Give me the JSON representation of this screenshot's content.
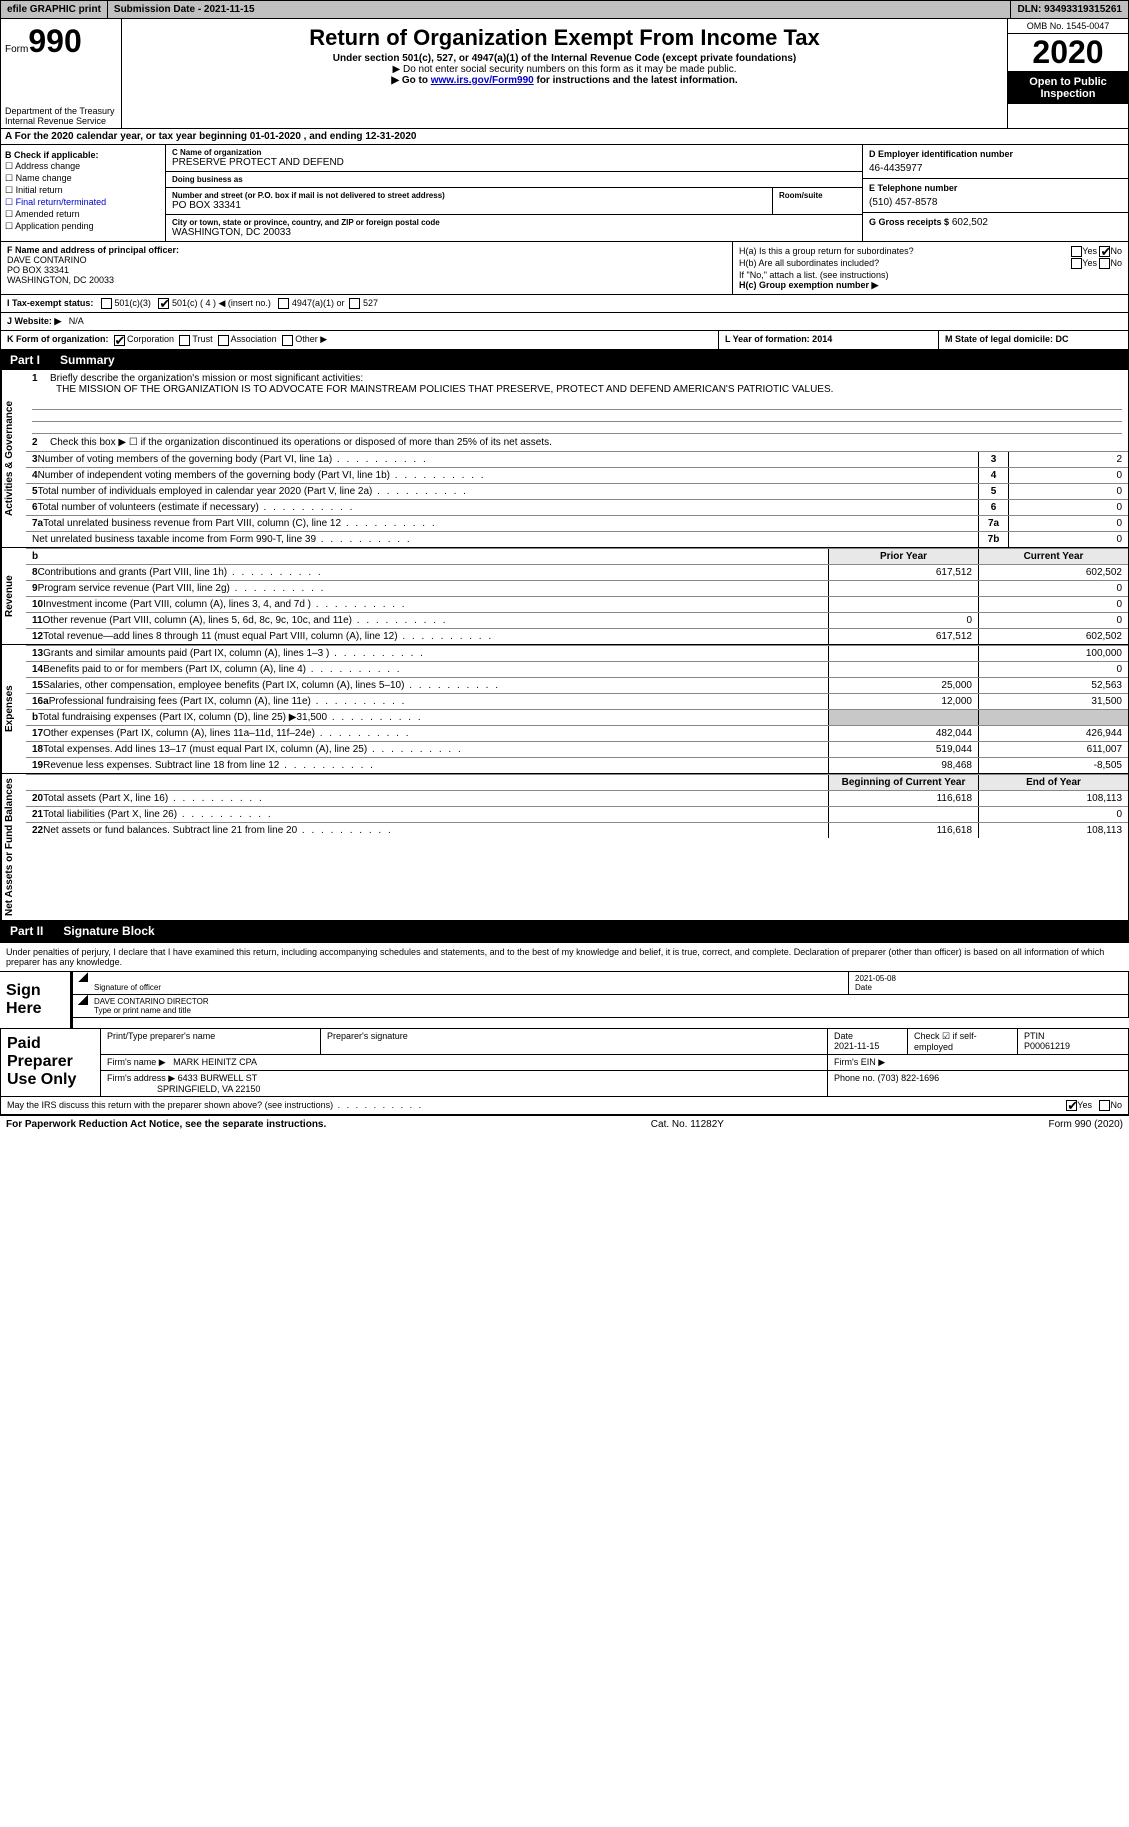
{
  "colors": {
    "bg": "#ffffff",
    "text": "#000000",
    "grey": "#c0c0c0",
    "shade": "#c8c8c8",
    "hdr": "#000000",
    "link": "#0000cc"
  },
  "topbar": {
    "efile": "efile GRAPHIC print",
    "sub_label": "Submission Date - 2021-11-15",
    "dln": "DLN: 93493319315261"
  },
  "header": {
    "form_word": "Form",
    "form_num": "990",
    "title": "Return of Organization Exempt From Income Tax",
    "sub1": "Under section 501(c), 527, or 4947(a)(1) of the Internal Revenue Code (except private foundations)",
    "sub2": "▶ Do not enter social security numbers on this form as it may be made public.",
    "sub3_pre": "▶ Go to ",
    "sub3_link": "www.irs.gov/Form990",
    "sub3_post": " for instructions and the latest information.",
    "dept1": "Department of the Treasury",
    "dept2": "Internal Revenue Service",
    "omb": "OMB No. 1545-0047",
    "year": "2020",
    "open1": "Open to Public",
    "open2": "Inspection"
  },
  "line_a": "A For the 2020 calendar year, or tax year beginning 01-01-2020    , and ending 12-31-2020",
  "box_b": {
    "title": "B Check if applicable:",
    "items": [
      "Address change",
      "Name change",
      "Initial return",
      "Final return/terminated",
      "Amended return",
      "Application pending"
    ]
  },
  "box_c": {
    "name_lbl": "C Name of organization",
    "name": "PRESERVE PROTECT AND DEFEND",
    "dba_lbl": "Doing business as",
    "dba": "",
    "addr_lbl": "Number and street (or P.O. box if mail is not delivered to street address)",
    "room_lbl": "Room/suite",
    "addr": "PO BOX 33341",
    "city_lbl": "City or town, state or province, country, and ZIP or foreign postal code",
    "city": "WASHINGTON, DC  20033"
  },
  "box_d": {
    "lbl": "D Employer identification number",
    "val": "46-4435977"
  },
  "box_e": {
    "lbl": "E Telephone number",
    "val": "(510) 457-8578"
  },
  "box_g": {
    "lbl": "G Gross receipts $",
    "val": "602,502"
  },
  "box_f": {
    "lbl": "F  Name and address of principal officer:",
    "l1": "DAVE CONTARINO",
    "l2": "PO BOX 33341",
    "l3": "WASHINGTON, DC  20033"
  },
  "box_h": {
    "a": "H(a)  Is this a group return for subordinates?",
    "b": "H(b)  Are all subordinates included?",
    "note": "If \"No,\" attach a list. (see instructions)",
    "c": "H(c)  Group exemption number ▶",
    "yes": "Yes",
    "no": "No"
  },
  "row_i": {
    "lbl": "I   Tax-exempt status:",
    "o1": "501(c)(3)",
    "o2": "501(c) ( 4 ) ◀ (insert no.)",
    "o3": "4947(a)(1) or",
    "o4": "527"
  },
  "row_j": {
    "lbl": "J   Website: ▶",
    "val": "N/A"
  },
  "row_k": {
    "lbl": "K Form of organization:",
    "o1": "Corporation",
    "o2": "Trust",
    "o3": "Association",
    "o4": "Other ▶"
  },
  "row_l": "L Year of formation: 2014",
  "row_m": "M State of legal domicile: DC",
  "part1": {
    "num": "Part I",
    "title": "Summary"
  },
  "side": {
    "gov": "Activities & Governance",
    "rev": "Revenue",
    "exp": "Expenses",
    "net": "Net Assets or Fund Balances"
  },
  "q1": {
    "num": "1",
    "text": "Briefly describe the organization's mission or most significant activities:",
    "mission": "THE MISSION OF THE ORGANIZATION IS TO ADVOCATE FOR MAINSTREAM POLICIES THAT PRESERVE, PROTECT AND DEFEND AMERICAN'S PATRIOTIC VALUES."
  },
  "q2": {
    "num": "2",
    "text": "Check this box ▶ ☐  if the organization discontinued its operations or disposed of more than 25% of its net assets."
  },
  "gov_rows": [
    {
      "n": "3",
      "d": "Number of voting members of the governing body (Part VI, line 1a)",
      "b": "3",
      "v": "2"
    },
    {
      "n": "4",
      "d": "Number of independent voting members of the governing body (Part VI, line 1b)",
      "b": "4",
      "v": "0"
    },
    {
      "n": "5",
      "d": "Total number of individuals employed in calendar year 2020 (Part V, line 2a)",
      "b": "5",
      "v": "0"
    },
    {
      "n": "6",
      "d": "Total number of volunteers (estimate if necessary)",
      "b": "6",
      "v": "0"
    },
    {
      "n": "7a",
      "d": "Total unrelated business revenue from Part VIII, column (C), line 12",
      "b": "7a",
      "v": "0"
    },
    {
      "n": "",
      "d": "Net unrelated business taxable income from Form 990-T, line 39",
      "b": "7b",
      "v": "0"
    }
  ],
  "fin_hdr": {
    "b": "b",
    "py": "Prior Year",
    "cy": "Current Year"
  },
  "rev_rows": [
    {
      "n": "8",
      "d": "Contributions and grants (Part VIII, line 1h)",
      "py": "617,512",
      "cy": "602,502"
    },
    {
      "n": "9",
      "d": "Program service revenue (Part VIII, line 2g)",
      "py": "",
      "cy": "0"
    },
    {
      "n": "10",
      "d": "Investment income (Part VIII, column (A), lines 3, 4, and 7d )",
      "py": "",
      "cy": "0"
    },
    {
      "n": "11",
      "d": "Other revenue (Part VIII, column (A), lines 5, 6d, 8c, 9c, 10c, and 11e)",
      "py": "0",
      "cy": "0"
    },
    {
      "n": "12",
      "d": "Total revenue—add lines 8 through 11 (must equal Part VIII, column (A), line 12)",
      "py": "617,512",
      "cy": "602,502"
    }
  ],
  "exp_rows": [
    {
      "n": "13",
      "d": "Grants and similar amounts paid (Part IX, column (A), lines 1–3 )",
      "py": "",
      "cy": "100,000"
    },
    {
      "n": "14",
      "d": "Benefits paid to or for members (Part IX, column (A), line 4)",
      "py": "",
      "cy": "0"
    },
    {
      "n": "15",
      "d": "Salaries, other compensation, employee benefits (Part IX, column (A), lines 5–10)",
      "py": "25,000",
      "cy": "52,563"
    },
    {
      "n": "16a",
      "d": "Professional fundraising fees (Part IX, column (A), line 11e)",
      "py": "12,000",
      "cy": "31,500"
    },
    {
      "n": "b",
      "d": "Total fundraising expenses (Part IX, column (D), line 25) ▶31,500",
      "py": "SHADE",
      "cy": "SHADE"
    },
    {
      "n": "17",
      "d": "Other expenses (Part IX, column (A), lines 11a–11d, 11f–24e)",
      "py": "482,044",
      "cy": "426,944"
    },
    {
      "n": "18",
      "d": "Total expenses. Add lines 13–17 (must equal Part IX, column (A), line 25)",
      "py": "519,044",
      "cy": "611,007"
    },
    {
      "n": "19",
      "d": "Revenue less expenses. Subtract line 18 from line 12",
      "py": "98,468",
      "cy": "-8,505"
    }
  ],
  "net_hdr": {
    "py": "Beginning of Current Year",
    "cy": "End of Year"
  },
  "net_rows": [
    {
      "n": "20",
      "d": "Total assets (Part X, line 16)",
      "py": "116,618",
      "cy": "108,113"
    },
    {
      "n": "21",
      "d": "Total liabilities (Part X, line 26)",
      "py": "",
      "cy": "0"
    },
    {
      "n": "22",
      "d": "Net assets or fund balances. Subtract line 21 from line 20",
      "py": "116,618",
      "cy": "108,113"
    }
  ],
  "part2": {
    "num": "Part II",
    "title": "Signature Block"
  },
  "sig_decl": "Under penalties of perjury, I declare that I have examined this return, including accompanying schedules and statements, and to the best of my knowledge and belief, it is true, correct, and complete. Declaration of preparer (other than officer) is based on all information of which preparer has any knowledge.",
  "sign": {
    "side": "Sign Here",
    "sig_lbl": "Signature of officer",
    "date_lbl": "Date",
    "date": "2021-05-08",
    "name": "DAVE CONTARINO  DIRECTOR",
    "name_lbl": "Type or print name and title"
  },
  "prep": {
    "side": "Paid Preparer Use Only",
    "h1": "Print/Type preparer's name",
    "h2": "Preparer's signature",
    "h3": "Date",
    "h4": "Check ☑ if self-employed",
    "h5": "PTIN",
    "date": "2021-11-15",
    "ptin": "P00061219",
    "firm_lbl": "Firm's name   ▶",
    "firm": "MARK HEINITZ CPA",
    "ein_lbl": "Firm's EIN ▶",
    "addr_lbl": "Firm's address ▶",
    "addr1": "6433 BURWELL ST",
    "addr2": "SPRINGFIELD, VA  22150",
    "phone_lbl": "Phone no.",
    "phone": "(703) 822-1696"
  },
  "discuss": {
    "text": "May the IRS discuss this return with the preparer shown above? (see instructions)",
    "yes": "Yes",
    "no": "No"
  },
  "footer": {
    "left": "For Paperwork Reduction Act Notice, see the separate instructions.",
    "mid": "Cat. No. 11282Y",
    "right": "Form 990 (2020)"
  }
}
